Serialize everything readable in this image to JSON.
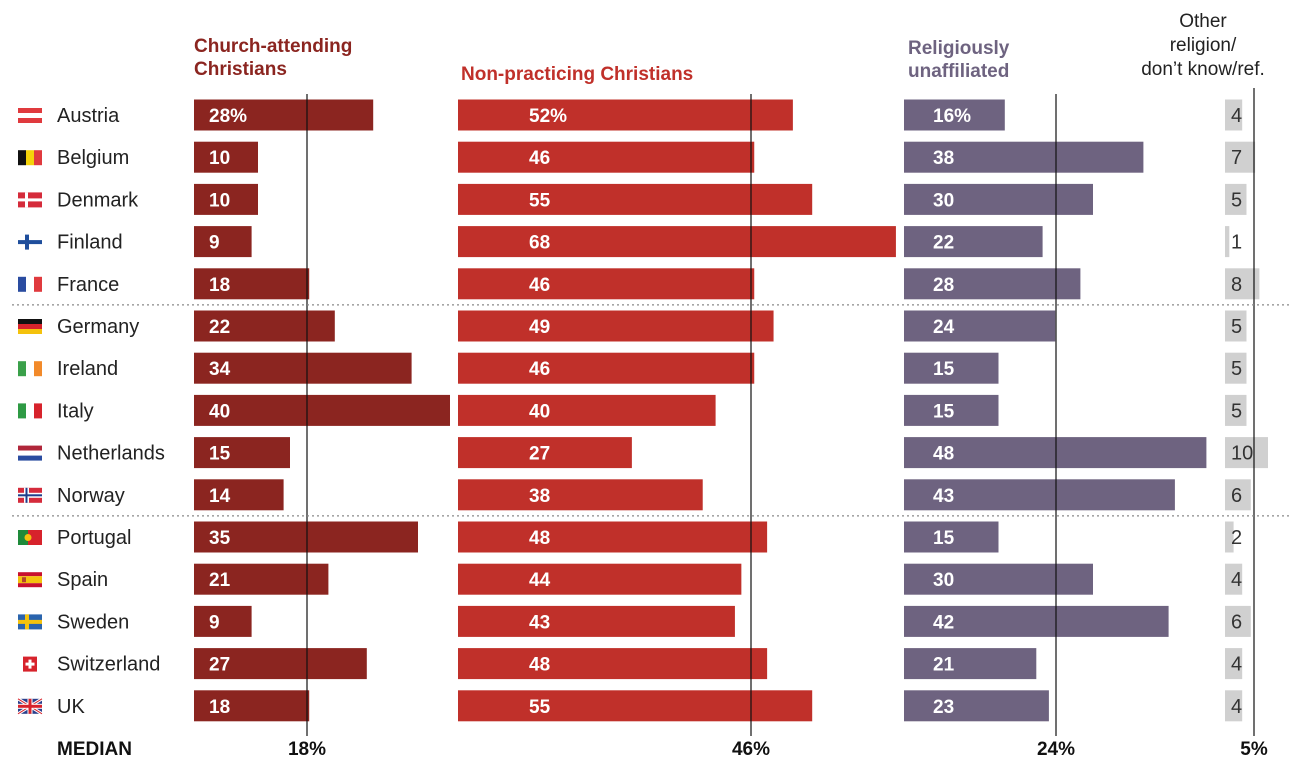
{
  "chart_data": {
    "type": "bar",
    "categories": [
      "Austria",
      "Belgium",
      "Denmark",
      "Finland",
      "France",
      "Germany",
      "Ireland",
      "Italy",
      "Netherlands",
      "Norway",
      "Portugal",
      "Spain",
      "Sweden",
      "Switzerland",
      "UK"
    ],
    "series": [
      {
        "name": "Church-attending Christians",
        "values": [
          28,
          10,
          10,
          9,
          18,
          22,
          34,
          40,
          15,
          14,
          35,
          21,
          9,
          27,
          18
        ],
        "color": "#8b2520",
        "median": 18
      },
      {
        "name": "Non-practicing Christians",
        "values": [
          52,
          46,
          55,
          68,
          46,
          49,
          46,
          40,
          27,
          38,
          48,
          44,
          43,
          48,
          55
        ],
        "color": "#c0302a",
        "median": 46
      },
      {
        "name": "Religiously unaffiliated",
        "values": [
          16,
          38,
          30,
          22,
          28,
          24,
          15,
          15,
          48,
          43,
          15,
          30,
          42,
          21,
          23
        ],
        "color": "#6e6380",
        "median": 24
      },
      {
        "name": "Other religion/ don’t know/ref.",
        "values": [
          4,
          7,
          5,
          1,
          8,
          5,
          5,
          5,
          10,
          6,
          2,
          4,
          6,
          4,
          4
        ],
        "color": "#d0d0d0",
        "median": 5
      }
    ],
    "headers": {
      "church": [
        "Church-attending",
        "Christians"
      ],
      "nonpracticing": [
        "Non-practicing Christians"
      ],
      "unaffiliated": [
        "Religiously",
        "unaffiliated"
      ],
      "other": [
        "Other",
        "religion/",
        "don’t know/ref."
      ]
    },
    "median_row": {
      "label": "MEDIAN",
      "values": [
        "18%",
        "46%",
        "24%",
        "5%"
      ]
    },
    "first_row_labels": [
      "28%",
      "52%",
      "16%"
    ],
    "group_separators_after": [
      "France",
      "Norway"
    ],
    "flags": [
      "austria-flag",
      "belgium-flag",
      "denmark-flag",
      "finland-flag",
      "france-flag",
      "germany-flag",
      "ireland-flag",
      "italy-flag",
      "netherlands-flag",
      "norway-flag",
      "portugal-flag",
      "spain-flag",
      "sweden-flag",
      "switzerland-flag",
      "uk-flag"
    ]
  }
}
